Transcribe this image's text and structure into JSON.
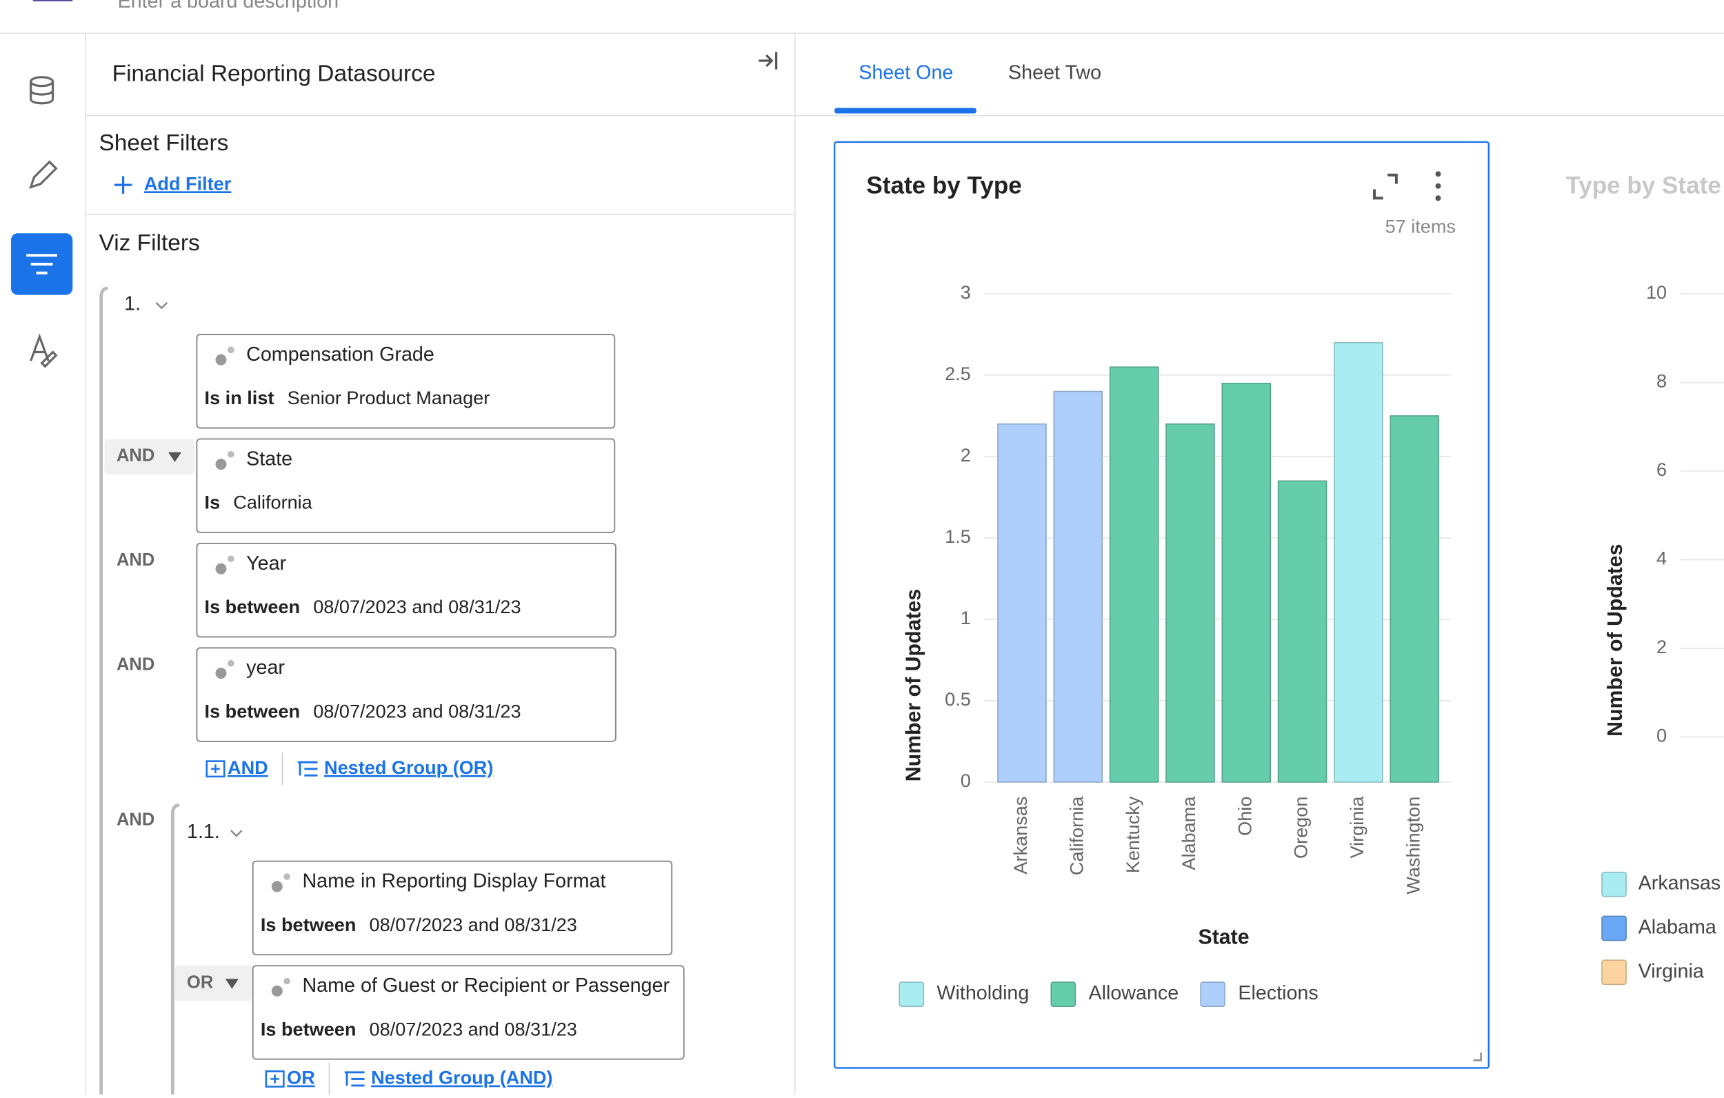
{
  "header": {
    "description_placeholder": "Enter a board description"
  },
  "panel": {
    "title": "Financial Reporting Datasource",
    "sheet_filters": "Sheet Filters",
    "add_filter": "Add Filter",
    "viz_filters": "Viz Filters"
  },
  "filters": {
    "group_label": "1.",
    "items": [
      {
        "field": "Compensation Grade",
        "op": "Is in list",
        "value": "Senior Product Manager"
      },
      {
        "connector": "AND",
        "field": "State",
        "op": "Is",
        "value": "California"
      },
      {
        "connector": "AND",
        "field": "Year",
        "op": "Is between",
        "value": "08/07/2023 and 08/31/23"
      },
      {
        "connector": "AND",
        "field": "year",
        "op": "Is between",
        "value": "08/07/2023 and 08/31/23"
      }
    ],
    "actions": [
      "AND",
      "Nested Group (OR)"
    ],
    "nested": {
      "connector": "AND",
      "group_label": "1.1.",
      "items": [
        {
          "field": "Name in Reporting Display Format",
          "op": "Is between",
          "value": "08/07/2023 and 08/31/23"
        },
        {
          "connector": "OR",
          "field": "Name of Guest or Recipient or Passenger",
          "op": "Is between",
          "value": "08/07/2023 and 08/31/23"
        }
      ],
      "actions": [
        "OR",
        "Nested Group (AND)"
      ]
    }
  },
  "tabs": [
    "Sheet One",
    "Sheet Two"
  ],
  "chart_data": [
    {
      "type": "bar",
      "title": "State by Type",
      "subtitle": "57 items",
      "x_label": "State",
      "y_label": "Number of Updates",
      "categories": [
        "Arkansas",
        "California",
        "Kentucky",
        "Alabama",
        "Ohio",
        "Oregon",
        "Virginia",
        "Washington"
      ],
      "series": [
        {
          "name": "Witholding",
          "color": "#a9ecf2",
          "values": [
            null,
            null,
            null,
            null,
            null,
            null,
            2.7,
            null
          ]
        },
        {
          "name": "Allowance",
          "color": "#66cdaa",
          "values": [
            null,
            null,
            2.55,
            2.2,
            2.45,
            1.85,
            null,
            2.25
          ]
        },
        {
          "name": "Elections",
          "color": "#aecffb",
          "values": [
            2.2,
            2.4,
            null,
            null,
            null,
            null,
            null,
            null
          ]
        }
      ],
      "ylim": [
        0,
        3
      ],
      "yticks": [
        0,
        0.5,
        1,
        1.5,
        2,
        2.5,
        3
      ],
      "grid": true
    },
    {
      "type": "bar",
      "title": "Type by State",
      "y_label": "Number of Updates",
      "ylim": [
        0,
        10
      ],
      "yticks": [
        0,
        2,
        4,
        6,
        8,
        10
      ],
      "grid": true,
      "legend": [
        {
          "name": "Arkansas",
          "color": "#a9ecf2"
        },
        {
          "name": "Alabama",
          "color": "#6aa8f5"
        },
        {
          "name": "Virginia",
          "color": "#fdd4a0"
        }
      ]
    }
  ]
}
